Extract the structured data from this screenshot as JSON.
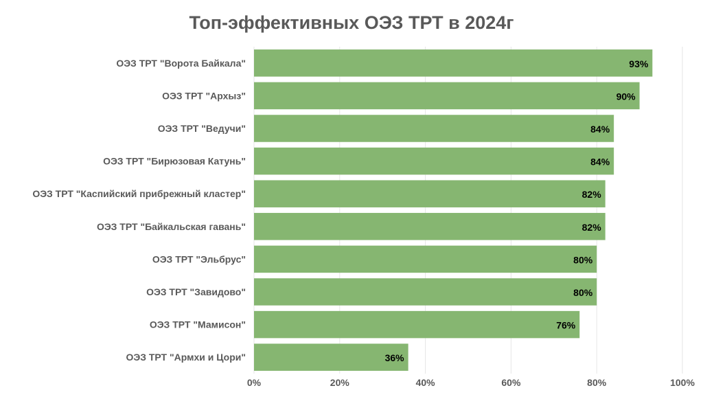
{
  "chart_data": {
    "type": "bar",
    "orientation": "horizontal",
    "title": "Топ-эффективных ОЭЗ ТРТ в 2024г",
    "categories": [
      "ОЭЗ ТРТ \"Ворота Байкала\"",
      "ОЭЗ ТРТ \"Архыз\"",
      "ОЭЗ ТРТ \"Ведучи\"",
      "ОЭЗ ТРТ \"Бирюзовая Катунь\"",
      "ОЭЗ ТРТ \"Каспийский прибрежный кластер\"",
      "ОЭЗ ТРТ \"Байкальская гавань\"",
      "ОЭЗ ТРТ \"Эльбрус\"",
      "ОЭЗ ТРТ \"Завидово\"",
      "ОЭЗ ТРТ \"Мамисон\"",
      "ОЭЗ ТРТ \"Армхи и Цори\""
    ],
    "values": [
      93,
      90,
      84,
      84,
      82,
      82,
      80,
      80,
      76,
      36
    ],
    "data_labels": [
      "93%",
      "90%",
      "84%",
      "84%",
      "82%",
      "82%",
      "80%",
      "80%",
      "76%",
      "36%"
    ],
    "xlim": [
      0,
      100
    ],
    "x_ticks": [
      0,
      20,
      40,
      60,
      80,
      100
    ],
    "x_tick_labels": [
      "0%",
      "20%",
      "40%",
      "60%",
      "80%",
      "100%"
    ],
    "xlabel": "",
    "ylabel": "",
    "grid": true,
    "legend": "none",
    "colors": {
      "bar": "#86b671",
      "grid": "#e6e6e6",
      "text": "#595959",
      "data_label": "#000000"
    }
  }
}
